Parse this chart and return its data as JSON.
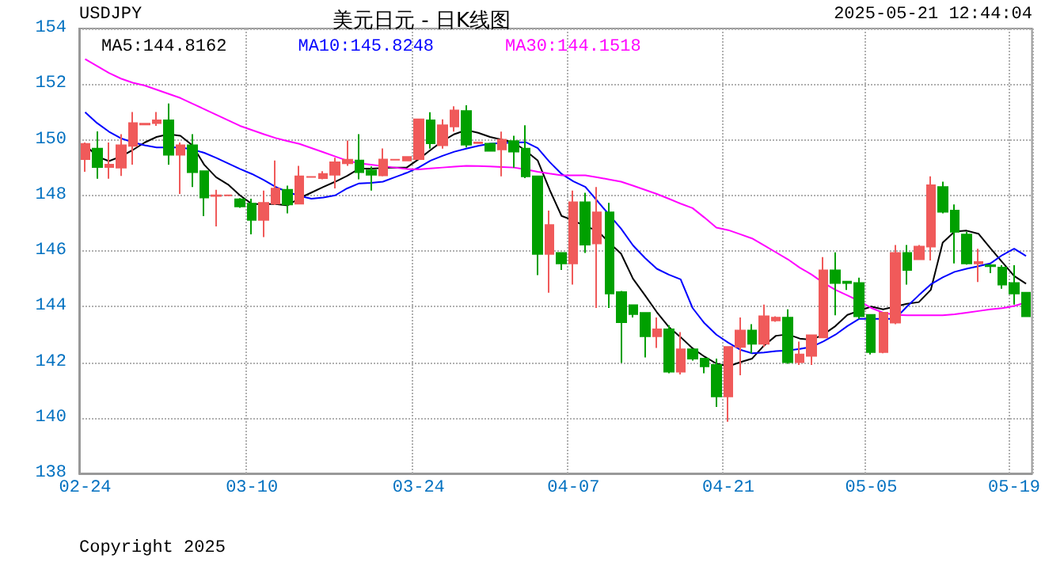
{
  "chart_data": {
    "type": "candlestick",
    "title": "美元日元 - 日K线图",
    "annotations": [
      "USDJPY",
      "2025-05-21 12:44:04",
      "Copyright 2025"
    ],
    "categories": [
      "02-24",
      null,
      null,
      null,
      null,
      null,
      null,
      null,
      null,
      null,
      null,
      null,
      null,
      null,
      "03-10",
      null,
      null,
      null,
      null,
      null,
      null,
      null,
      null,
      null,
      null,
      null,
      null,
      null,
      "03-24",
      null,
      null,
      null,
      null,
      null,
      null,
      null,
      null,
      null,
      null,
      null,
      null,
      "04-07",
      null,
      null,
      null,
      null,
      null,
      null,
      null,
      null,
      null,
      null,
      null,
      null,
      "04-21",
      null,
      null,
      null,
      null,
      null,
      null,
      null,
      null,
      null,
      null,
      null,
      "05-05",
      null,
      null,
      null,
      null,
      null,
      null,
      null,
      null,
      null,
      null,
      null,
      "05-19",
      null
    ],
    "ohlc": [
      [
        149.3,
        149.9,
        148.85,
        149.85
      ],
      [
        149.68,
        150.3,
        148.6,
        149.02
      ],
      [
        149.02,
        149.9,
        148.6,
        149.1
      ],
      [
        149.0,
        150.2,
        148.7,
        149.8
      ],
      [
        149.78,
        151.0,
        149.1,
        150.6
      ],
      [
        150.55,
        150.6,
        150.55,
        150.58
      ],
      [
        150.6,
        151.0,
        150.5,
        150.7
      ],
      [
        150.7,
        151.3,
        149.1,
        149.46
      ],
      [
        149.46,
        149.9,
        148.05,
        149.8
      ],
      [
        149.8,
        150.2,
        148.3,
        148.83
      ],
      [
        148.87,
        148.87,
        147.25,
        147.92
      ],
      [
        147.98,
        148.2,
        146.88,
        148.0
      ],
      [
        148.0,
        148.02,
        147.98,
        148.0
      ],
      [
        147.86,
        147.9,
        147.55,
        147.6
      ],
      [
        147.7,
        147.88,
        146.6,
        147.12
      ],
      [
        147.12,
        148.17,
        146.5,
        147.73
      ],
      [
        147.7,
        149.25,
        147.65,
        148.24
      ],
      [
        148.2,
        148.35,
        147.35,
        147.67
      ],
      [
        147.7,
        149.06,
        147.7,
        148.68
      ],
      [
        148.66,
        148.68,
        148.64,
        148.66
      ],
      [
        148.62,
        148.87,
        148.58,
        148.77
      ],
      [
        148.74,
        149.35,
        148.25,
        149.19
      ],
      [
        149.15,
        149.97,
        149.06,
        149.28
      ],
      [
        149.25,
        150.2,
        148.58,
        148.83
      ],
      [
        148.9,
        149.04,
        148.17,
        148.74
      ],
      [
        148.72,
        149.69,
        148.68,
        149.29
      ],
      [
        149.28,
        149.3,
        149.26,
        149.28
      ],
      [
        149.25,
        149.4,
        149.23,
        149.38
      ],
      [
        149.3,
        150.73,
        149.3,
        150.73
      ],
      [
        150.7,
        150.99,
        149.68,
        149.87
      ],
      [
        149.8,
        150.73,
        149.68,
        150.52
      ],
      [
        150.48,
        151.2,
        150.29,
        151.05
      ],
      [
        151.03,
        151.24,
        149.72,
        149.82
      ],
      [
        149.88,
        149.92,
        149.86,
        149.9
      ],
      [
        149.86,
        149.88,
        149.58,
        149.6
      ],
      [
        149.65,
        150.29,
        148.68,
        150.0
      ],
      [
        149.95,
        150.14,
        149.0,
        149.57
      ],
      [
        149.68,
        150.52,
        148.62,
        148.68
      ],
      [
        148.68,
        148.68,
        145.13,
        145.89
      ],
      [
        145.89,
        147.45,
        144.5,
        146.93
      ],
      [
        145.93,
        145.95,
        145.32,
        145.55
      ],
      [
        145.55,
        148.17,
        144.79,
        147.75
      ],
      [
        147.75,
        148.09,
        145.93,
        146.23
      ],
      [
        146.27,
        148.3,
        143.95,
        147.39
      ],
      [
        147.39,
        147.73,
        143.95,
        144.47
      ],
      [
        144.52,
        144.56,
        141.98,
        143.44
      ],
      [
        144.05,
        144.05,
        143.61,
        143.73
      ],
      [
        143.77,
        143.77,
        142.17,
        142.93
      ],
      [
        142.93,
        143.61,
        142.51,
        143.18
      ],
      [
        143.18,
        143.33,
        141.6,
        141.66
      ],
      [
        141.66,
        143.08,
        141.56,
        142.46
      ],
      [
        142.46,
        142.46,
        142.06,
        142.13
      ],
      [
        142.13,
        142.13,
        141.6,
        141.85
      ],
      [
        141.9,
        142.13,
        140.39,
        140.77
      ],
      [
        140.77,
        142.55,
        139.86,
        142.55
      ],
      [
        142.55,
        143.61,
        141.53,
        143.14
      ],
      [
        143.14,
        143.37,
        142.32,
        142.66
      ],
      [
        142.66,
        144.07,
        142.55,
        143.65
      ],
      [
        143.5,
        143.65,
        143.45,
        143.6
      ],
      [
        143.6,
        143.9,
        141.94,
        142.0
      ],
      [
        142.0,
        142.74,
        141.9,
        142.28
      ],
      [
        142.23,
        142.97,
        141.9,
        142.97
      ],
      [
        142.89,
        145.78,
        142.89,
        145.3
      ],
      [
        145.3,
        145.95,
        143.69,
        144.85
      ],
      [
        144.9,
        144.9,
        144.6,
        144.85
      ],
      [
        144.85,
        145.04,
        143.56,
        143.65
      ],
      [
        143.7,
        143.7,
        142.28,
        142.36
      ],
      [
        142.36,
        143.78,
        142.32,
        143.78
      ],
      [
        143.42,
        146.21,
        143.37,
        145.93
      ],
      [
        145.93,
        146.21,
        144.79,
        145.32
      ],
      [
        145.7,
        146.21,
        145.7,
        146.16
      ],
      [
        146.16,
        148.68,
        145.66,
        148.36
      ],
      [
        148.3,
        148.49,
        147.35,
        147.41
      ],
      [
        147.45,
        147.67,
        145.55,
        146.69
      ],
      [
        146.59,
        146.69,
        145.51,
        145.55
      ],
      [
        145.55,
        146.08,
        144.88,
        145.6
      ],
      [
        145.49,
        145.49,
        145.2,
        145.45
      ],
      [
        145.4,
        145.49,
        144.64,
        144.79
      ],
      [
        144.85,
        145.49,
        144.07,
        144.47
      ],
      [
        144.5,
        144.5,
        143.65,
        143.65
      ]
    ],
    "colors": [
      "#f05a5a",
      "#00a000",
      "#f05a5a",
      "#f05a5a",
      "#f05a5a",
      "#f05a5a",
      "#f05a5a",
      "#00a000",
      "#f05a5a",
      "#00a000",
      "#00a000",
      "#f05a5a",
      "#f05a5a",
      "#00a000",
      "#00a000",
      "#f05a5a",
      "#f05a5a",
      "#00a000",
      "#f05a5a",
      "#f05a5a",
      "#f05a5a",
      "#f05a5a",
      "#f05a5a",
      "#00a000",
      "#00a000",
      "#f05a5a",
      "#f05a5a",
      "#f05a5a",
      "#f05a5a",
      "#00a000",
      "#f05a5a",
      "#f05a5a",
      "#00a000",
      "#f05a5a",
      "#00a000",
      "#f05a5a",
      "#00a000",
      "#00a000",
      "#00a000",
      "#f05a5a",
      "#00a000",
      "#f05a5a",
      "#00a000",
      "#f05a5a",
      "#00a000",
      "#00a000",
      "#00a000",
      "#00a000",
      "#f05a5a",
      "#00a000",
      "#f05a5a",
      "#00a000",
      "#00a000",
      "#00a000",
      "#f05a5a",
      "#f05a5a",
      "#00a000",
      "#f05a5a",
      "#f05a5a",
      "#00a000",
      "#f05a5a",
      "#f05a5a",
      "#f05a5a",
      "#00a000",
      "#00a000",
      "#00a000",
      "#00a000",
      "#f05a5a",
      "#f05a5a",
      "#00a000",
      "#f05a5a",
      "#f05a5a",
      "#00a000",
      "#00a000",
      "#00a000",
      "#f05a5a",
      "#00a000",
      "#00a000",
      "#00a000",
      "#00a000"
    ],
    "series": [
      {
        "type": "line",
        "name": "MA5:144.8162",
        "color": "#000000",
        "values": [
          149.82,
          149.4,
          149.23,
          149.4,
          149.63,
          149.9,
          150.1,
          150.2,
          150.14,
          149.8,
          149.1,
          148.65,
          148.39,
          148.0,
          147.69,
          147.69,
          147.69,
          147.64,
          147.9,
          148.1,
          148.3,
          148.49,
          148.7,
          148.96,
          148.96,
          148.98,
          149.0,
          149.0,
          149.3,
          149.63,
          149.95,
          150.2,
          150.35,
          150.25,
          150.1,
          150.0,
          149.9,
          149.6,
          149.25,
          148.2,
          147.26,
          147.1,
          146.88,
          146.74,
          146.3,
          145.9,
          145.0,
          144.41,
          143.8,
          143.27,
          142.9,
          142.5,
          142.2,
          141.95,
          141.85,
          142.0,
          142.13,
          142.6,
          142.95,
          143.0,
          142.85,
          142.8,
          143.0,
          143.3,
          143.7,
          null,
          144.0,
          143.9,
          144.0,
          144.1,
          144.16,
          144.6,
          146.3,
          146.7,
          146.73,
          146.62,
          146.1,
          145.6,
          145.1,
          144.82
        ]
      },
      {
        "type": "line",
        "name": "MA10:145.8248",
        "color": "#0000ff",
        "values": [
          150.99,
          150.6,
          150.29,
          150.05,
          149.91,
          149.8,
          149.72,
          149.72,
          149.72,
          149.65,
          149.53,
          149.35,
          149.15,
          148.95,
          148.77,
          148.55,
          148.3,
          148.12,
          147.98,
          147.88,
          147.92,
          148.0,
          148.25,
          148.43,
          148.45,
          148.49,
          148.65,
          148.81,
          149.0,
          149.25,
          149.42,
          149.57,
          149.68,
          149.78,
          149.86,
          149.88,
          149.9,
          149.91,
          149.7,
          149.2,
          148.77,
          148.5,
          148.3,
          147.8,
          147.3,
          146.8,
          146.2,
          145.75,
          145.36,
          145.15,
          144.98,
          143.95,
          143.4,
          142.99,
          142.7,
          142.45,
          142.32,
          142.35,
          142.4,
          142.42,
          142.48,
          142.55,
          142.75,
          142.99,
          143.3,
          143.56,
          143.56,
          143.56,
          143.56,
          144.0,
          144.41,
          144.8,
          145.05,
          145.25,
          145.36,
          145.45,
          145.55,
          145.85,
          146.08,
          145.82
        ]
      },
      {
        "type": "line",
        "name": "MA30:144.1518",
        "color": "#ff00ff",
        "values": [
          152.9,
          152.65,
          152.4,
          152.2,
          152.05,
          151.95,
          151.8,
          151.65,
          151.5,
          151.3,
          151.1,
          150.9,
          150.7,
          150.5,
          150.35,
          150.2,
          150.06,
          149.95,
          149.85,
          149.7,
          149.55,
          149.4,
          149.25,
          149.15,
          149.1,
          149.05,
          149.0,
          148.95,
          148.93,
          148.97,
          149.0,
          149.03,
          149.06,
          149.05,
          149.04,
          149.02,
          149.0,
          148.93,
          148.85,
          148.78,
          148.72,
          148.72,
          148.72,
          148.65,
          148.57,
          148.49,
          148.35,
          148.2,
          148.05,
          147.88,
          147.7,
          147.54,
          147.2,
          146.84,
          146.75,
          146.6,
          146.45,
          146.2,
          145.95,
          145.7,
          145.4,
          145.15,
          144.85,
          144.6,
          144.4,
          144.2,
          143.95,
          143.78,
          143.7,
          143.69,
          143.69,
          143.69,
          143.69,
          143.72,
          143.78,
          143.84,
          143.9,
          143.94,
          144.02,
          144.15
        ]
      }
    ],
    "ylim": [
      138,
      154
    ],
    "yticks": [
      138,
      140,
      142,
      144,
      146,
      148,
      150,
      152,
      154
    ],
    "grid": true,
    "legend": "top left"
  }
}
